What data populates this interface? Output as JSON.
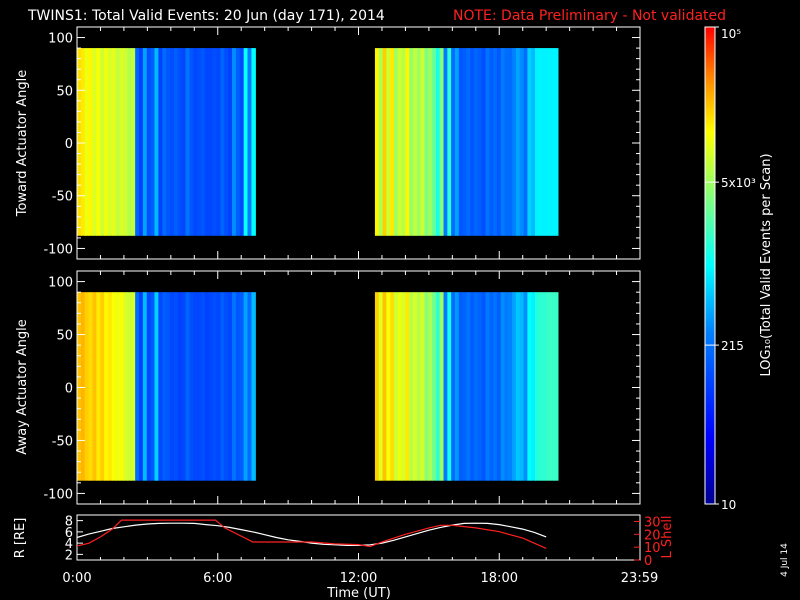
{
  "title": "TWINS1: Total Valid Events: 20 Jun (day 171), 2014",
  "note": "NOTE: Data Preliminary - Not validated",
  "side_date": "4 Jul 14",
  "colors": {
    "background": "#000000",
    "axes": "#ffffff",
    "note": "#ff2020",
    "orbit_r": "#ffffff",
    "orbit_lshell": "#ff2020"
  },
  "colorbar": {
    "label": "LOG₁₀(Total Valid Events per Scan)",
    "scale": "log",
    "range": [
      10,
      100000
    ],
    "tick_labels": [
      "10",
      "215",
      "5x10³",
      "10⁵"
    ],
    "tick_values": [
      10,
      215,
      5000,
      100000
    ]
  },
  "chart_data": [
    {
      "type": "heatmap",
      "panel": "toward",
      "ylabel": "Toward Actuator Angle",
      "ylim": [
        -110,
        110
      ],
      "yticks": [
        100,
        50,
        0,
        -50,
        -100
      ],
      "x_unit": "hours UT",
      "y_extent": [
        -88,
        90
      ],
      "segments": [
        {
          "t0": 0.0,
          "t1": 7.6,
          "log_profile": [
            4.25,
            4.2,
            4.05,
            4.15,
            3.95,
            4.1,
            3.9,
            4.05,
            3.95,
            4.0,
            3.85,
            3.95,
            3.9,
            3.8,
            3.85,
            2.25,
            2.0,
            2.6,
            2.1,
            2.2,
            2.7,
            2.0,
            2.3,
            2.15,
            2.1,
            2.2,
            2.1,
            2.05,
            2.35,
            2.15,
            2.05,
            2.1,
            2.15,
            2.05,
            2.05,
            2.1,
            2.05,
            2.25,
            2.1,
            2.0,
            2.5,
            2.2,
            2.05,
            3.05,
            2.4,
            3.0
          ]
        },
        {
          "t0": 12.7,
          "t1": 20.5,
          "log_profile": [
            4.15,
            3.75,
            4.3,
            3.9,
            4.2,
            3.7,
            3.9,
            3.8,
            4.15,
            3.65,
            3.85,
            3.7,
            3.9,
            3.55,
            3.7,
            3.45,
            3.1,
            3.6,
            2.4,
            3.2,
            2.3,
            2.6,
            2.15,
            2.2,
            2.3,
            2.15,
            2.25,
            2.2,
            2.1,
            2.35,
            2.2,
            2.3,
            2.15,
            2.4,
            2.3,
            2.3,
            2.45,
            2.6,
            2.5,
            2.3,
            2.8,
            2.7,
            2.95,
            2.95,
            2.95,
            2.95,
            2.95,
            2.95
          ]
        }
      ]
    },
    {
      "type": "heatmap",
      "panel": "away",
      "ylabel": "Away Actuator Angle",
      "ylim": [
        -110,
        110
      ],
      "yticks": [
        100,
        50,
        0,
        -50,
        -100
      ],
      "x_unit": "hours UT",
      "y_extent": [
        -88,
        90
      ],
      "segments": [
        {
          "t0": 0.0,
          "t1": 7.6,
          "log_profile": [
            4.35,
            4.4,
            4.3,
            4.25,
            4.35,
            4.2,
            4.3,
            4.15,
            4.2,
            4.1,
            4.05,
            4.1,
            3.95,
            3.9,
            3.95,
            2.3,
            2.0,
            2.7,
            2.05,
            2.15,
            2.8,
            2.05,
            2.2,
            2.15,
            2.05,
            2.1,
            2.0,
            2.05,
            2.25,
            2.1,
            2.05,
            2.05,
            2.1,
            2.0,
            2.05,
            2.1,
            2.05,
            2.2,
            2.1,
            2.05,
            2.35,
            2.15,
            2.2,
            2.6,
            2.3,
            2.7
          ]
        },
        {
          "t0": 12.7,
          "t1": 20.5,
          "log_profile": [
            4.3,
            4.0,
            4.35,
            4.1,
            4.25,
            3.9,
            4.05,
            3.95,
            4.2,
            3.8,
            3.95,
            3.8,
            3.95,
            3.6,
            3.75,
            3.5,
            3.2,
            3.7,
            2.4,
            3.1,
            2.3,
            2.55,
            2.2,
            2.25,
            2.35,
            2.2,
            2.3,
            2.25,
            2.15,
            2.4,
            2.25,
            2.35,
            2.2,
            2.5,
            2.4,
            2.45,
            2.6,
            2.75,
            2.7,
            2.5,
            3.0,
            2.95,
            3.15,
            3.2,
            3.2,
            3.25,
            3.25,
            3.25
          ]
        }
      ]
    },
    {
      "type": "line",
      "panel": "orbit",
      "xlabel": "Time (UT)",
      "x_ticks": [
        "0:00",
        "6:00",
        "12:00",
        "18:00",
        "23:59"
      ],
      "x_tick_values": [
        0,
        6,
        12,
        18,
        23.98
      ],
      "xlim": [
        0,
        24
      ],
      "ylabel_left": "R [RE]",
      "ylabel_left_sub": "E",
      "ylim_left": [
        1,
        9
      ],
      "yticks_left": [
        2,
        4,
        6,
        8
      ],
      "ylabel_right": "L Shell",
      "ylim_right": [
        0,
        35
      ],
      "yticks_right": [
        0,
        10,
        20,
        30
      ],
      "series": [
        {
          "name": "R",
          "axis": "left",
          "x": [
            0,
            0.5,
            1,
            1.5,
            2,
            2.5,
            3,
            3.5,
            4,
            4.5,
            5,
            5.5,
            6,
            6.5,
            7,
            7.5,
            8,
            8.5,
            9,
            9.5,
            10,
            10.5,
            11,
            11.5,
            12,
            12.5,
            13,
            13.5,
            14,
            14.5,
            15,
            15.5,
            16,
            16.5,
            17,
            17.5,
            18,
            18.5,
            19,
            19.5,
            20
          ],
          "y": [
            5.0,
            5.6,
            6.1,
            6.6,
            6.9,
            7.2,
            7.4,
            7.5,
            7.55,
            7.55,
            7.5,
            7.3,
            7.1,
            6.8,
            6.4,
            6.0,
            5.5,
            5.0,
            4.6,
            4.3,
            4.0,
            3.8,
            3.7,
            3.6,
            3.6,
            3.7,
            4.0,
            4.5,
            5.1,
            5.7,
            6.3,
            6.8,
            7.2,
            7.5,
            7.55,
            7.5,
            7.3,
            6.9,
            6.5,
            5.9,
            5.1
          ]
        },
        {
          "name": "L Shell",
          "axis": "right",
          "x": [
            0,
            0.5,
            1,
            1.5,
            1.9,
            5.9,
            6.3,
            7.5,
            8.5,
            10,
            11,
            12,
            12.5,
            13,
            14,
            15,
            15.5,
            16,
            16.5,
            17,
            18,
            19,
            20
          ],
          "y": [
            11,
            13,
            18,
            24,
            31,
            31,
            25,
            14,
            14,
            14,
            12.5,
            12,
            10.5,
            14,
            20,
            25,
            27,
            27,
            26,
            25,
            22,
            17,
            9
          ]
        }
      ]
    }
  ]
}
